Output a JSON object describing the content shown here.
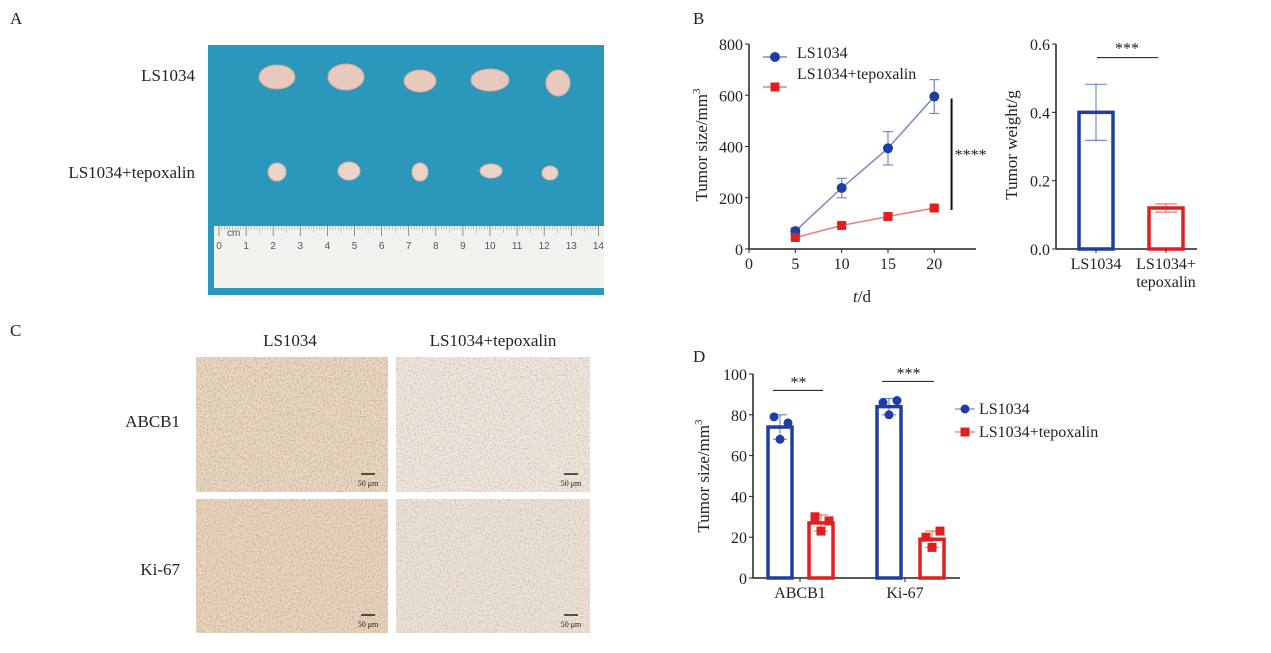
{
  "panels": {
    "a": "A",
    "b": "B",
    "c": "C",
    "d": "D"
  },
  "panel_a": {
    "row_labels": [
      "LS1034",
      "LS1034+tepoxalin"
    ],
    "ruler_unit": "cm",
    "ruler_numbers": [
      "0",
      "1",
      "2",
      "3",
      "4",
      "5",
      "6",
      "7",
      "8",
      "9",
      "10",
      "11",
      "12",
      "13",
      "14"
    ],
    "colors": {
      "background": "#2a97bb",
      "ruler": "#f1f1ee"
    }
  },
  "panel_c": {
    "column_headers": [
      "LS1034",
      "LS1034+tepoxalin"
    ],
    "row_labels": [
      "ABCB1",
      "Ki-67"
    ],
    "scale_bar": "50 μm"
  },
  "chart_data": [
    {
      "id": "growth",
      "type": "line",
      "title": "",
      "xlabel_italic": "t",
      "xlabel": "/d",
      "ylabel": "Tumor size/mm",
      "ylabel_sup": "3",
      "xlim": [
        0,
        24.5
      ],
      "ylim": [
        0,
        800
      ],
      "xticks": [
        0,
        5,
        10,
        15,
        20
      ],
      "yticks": [
        0,
        200,
        400,
        600,
        800
      ],
      "x": [
        5,
        10,
        15,
        20
      ],
      "series": [
        {
          "name": "LS1034",
          "color": "#1f3fa0",
          "line": "#7b86c8",
          "marker": "circle",
          "values": [
            70,
            238,
            393,
            595
          ],
          "errors": [
            12,
            38,
            65,
            66
          ]
        },
        {
          "name": "LS1034+tepoxalin",
          "color": "#e02020",
          "line": "#ee7a7a",
          "marker": "square",
          "values": [
            45,
            92,
            127,
            160
          ],
          "errors": [
            8,
            8,
            10,
            8
          ]
        }
      ],
      "significance": {
        "label": "****",
        "x": 21,
        "y_range": [
          160,
          595
        ]
      },
      "legend": "top-left"
    },
    {
      "id": "weight",
      "type": "bar",
      "ylabel": "Tumor weight/g",
      "ylim": [
        0,
        0.6
      ],
      "yticks": [
        "0.0",
        "0.2",
        "0.4",
        "0.6"
      ],
      "categories": [
        [
          "LS1034"
        ],
        [
          "LS1034+",
          "tepoxalin"
        ]
      ],
      "values": [
        0.4,
        0.12
      ],
      "errors": [
        0.082,
        0.012
      ],
      "colors": [
        "#1f3fa0",
        "#e02020"
      ],
      "significance": {
        "label": "***",
        "y": 0.56
      }
    },
    {
      "id": "ihc",
      "type": "bar",
      "ylabel": "Tumor size/mm",
      "ylabel_sup": "3",
      "ylim": [
        0,
        100
      ],
      "yticks": [
        0,
        20,
        40,
        60,
        80,
        100
      ],
      "categories": [
        "ABCB1",
        "Ki-67"
      ],
      "series": [
        {
          "name": "LS1034",
          "color": "#1f3fa0",
          "marker": "circle",
          "values": [
            74,
            84
          ],
          "errors": [
            6,
            4
          ],
          "points": [
            [
              79,
              76,
              68
            ],
            [
              86,
              87,
              80
            ]
          ]
        },
        {
          "name": "LS1034+tepoxalin",
          "color": "#e02020",
          "marker": "square",
          "values": [
            27,
            19
          ],
          "errors": [
            4,
            4
          ],
          "points": [
            [
              30,
              28,
              23
            ],
            [
              20,
              23,
              15
            ]
          ]
        }
      ],
      "significance": [
        {
          "label": "**",
          "y": 92
        },
        {
          "label": "***",
          "y": 92
        }
      ],
      "legend": "right"
    }
  ]
}
